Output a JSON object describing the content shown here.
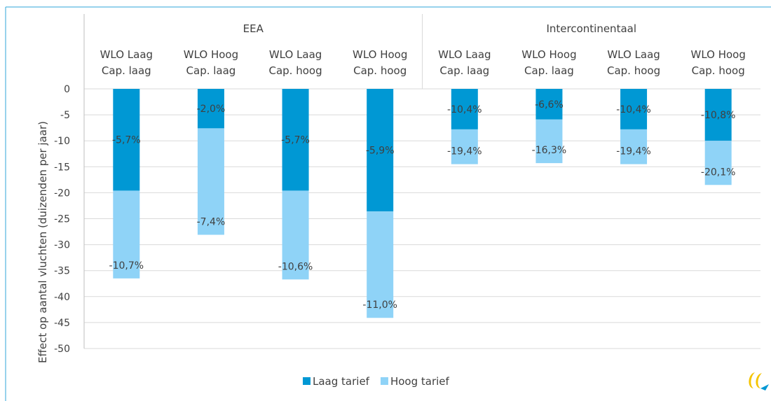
{
  "chart_data": {
    "type": "bar",
    "stacked": true,
    "ylabel": "Effect op aantal vluchten (duizenden per jaar)",
    "ylim": [
      -50,
      0
    ],
    "yticks": [
      0,
      -5,
      -10,
      -15,
      -20,
      -25,
      -30,
      -35,
      -40,
      -45,
      -50
    ],
    "grid": true,
    "legend_position": "bottom",
    "groups": [
      {
        "label": "EEA",
        "categories": [
          0,
          1,
          2,
          3
        ]
      },
      {
        "label": "Intercontinentaal",
        "categories": [
          4,
          5,
          6,
          7
        ]
      }
    ],
    "categories": [
      [
        "WLO Laag",
        "Cap. laag"
      ],
      [
        "WLO Hoog",
        "Cap. laag"
      ],
      [
        "WLO Laag",
        "Cap. hoog"
      ],
      [
        "WLO Hoog",
        "Cap. hoog"
      ],
      [
        "WLO Laag",
        "Cap. laag"
      ],
      [
        "WLO Hoog",
        "Cap. laag"
      ],
      [
        "WLO Laag",
        "Cap. hoog"
      ],
      [
        "WLO Hoog",
        "Cap. hoog"
      ]
    ],
    "series": [
      {
        "name": "Laag tarief",
        "color": "#0098d4",
        "values": [
          -19.6,
          -7.6,
          -19.6,
          -23.6,
          -7.8,
          -5.9,
          -7.8,
          -10.0
        ],
        "labels": [
          "-5,7%",
          "-2,0%",
          "-5,7%",
          "-5,9%",
          "-10,4%",
          "-6,6%",
          "-10,4%",
          "-10,8%"
        ]
      },
      {
        "name": "Hoog tarief",
        "color": "#8fd3f7",
        "values": [
          -16.9,
          -20.5,
          -17.1,
          -20.5,
          -6.7,
          -8.4,
          -6.7,
          -8.5
        ],
        "labels": [
          "-10,7%",
          "-7,4%",
          "-10,6%",
          "-11,0%",
          "-19,4%",
          "-16,3%",
          "-19,4%",
          "-20,1%"
        ]
      }
    ]
  }
}
